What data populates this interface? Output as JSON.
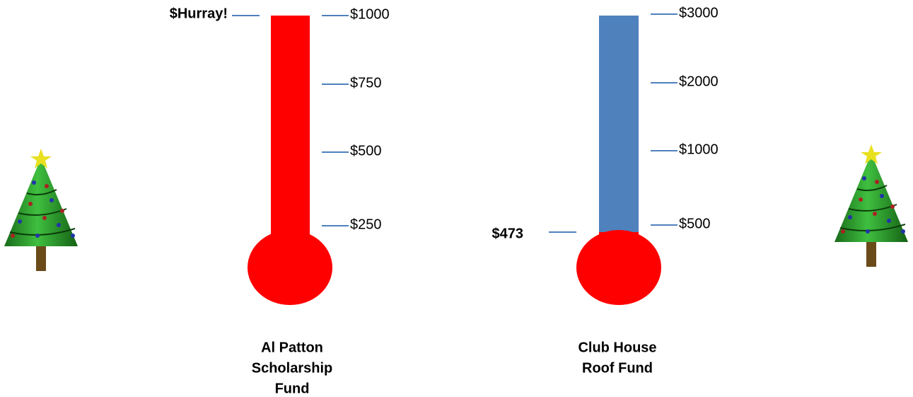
{
  "thermometers": [
    {
      "name_lines": [
        "Al Patton",
        "Scholarship",
        "Fund"
      ],
      "ticks": [
        "$1000",
        "$750",
        "$500",
        "$250"
      ],
      "marker": "$Hurray!"
    },
    {
      "name_lines": [
        "Club House",
        "Roof Fund"
      ],
      "ticks": [
        "$3000",
        "$2000",
        "$1000",
        "$500"
      ],
      "marker": "$473"
    }
  ]
}
